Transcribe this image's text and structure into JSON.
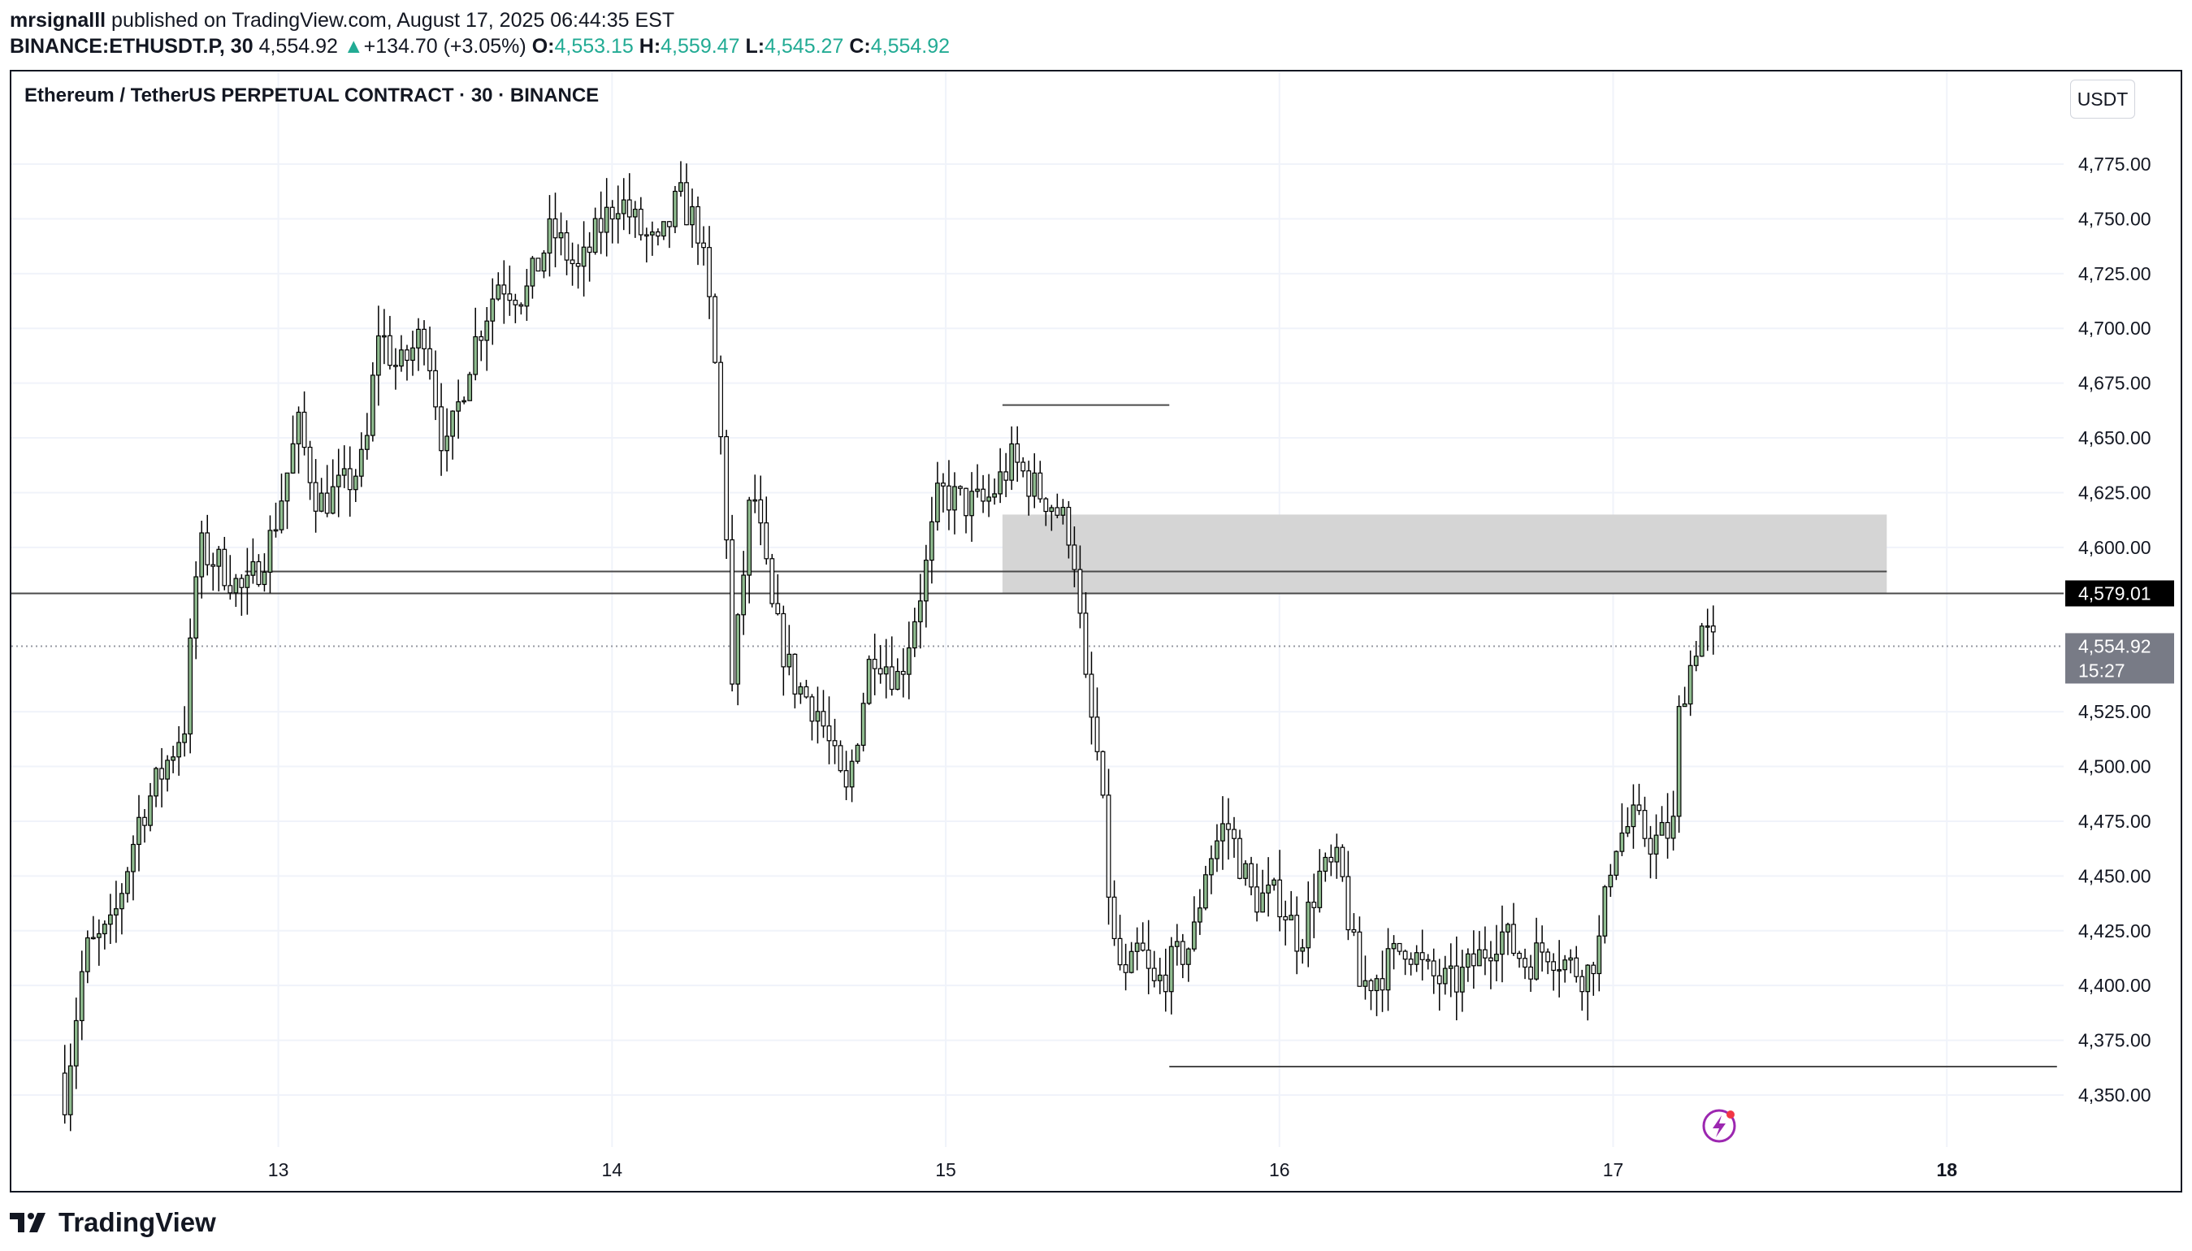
{
  "header": {
    "author": "mrsignalll",
    "published": "published on TradingView.com, August 17, 2025 06:44:35 EST",
    "symbol": "BINANCE:ETHUSDT.P, 30",
    "price": "4,554.92",
    "change": "+134.70 (+3.05%)",
    "o_label": "O:",
    "o_value": "4,553.15",
    "h_label": "H:",
    "h_value": "4,559.47",
    "l_label": "L:",
    "l_value": "4,545.27",
    "c_label": "C:",
    "c_value": "4,554.92"
  },
  "chart_title": "Ethereum / TetherUS PERPETUAL CONTRACT · 30 · BINANCE",
  "currency_button": "USDT",
  "brand": "TradingView",
  "colors": {
    "up_fill": "#8fbc8f",
    "candle_border": "#000000",
    "zone": "#d3d3d3",
    "accent": "#22ab94",
    "label_dark": "#000000",
    "label_gray": "#787b86"
  },
  "chart_data": {
    "type": "candlestick",
    "interval": "30",
    "y_axis": {
      "ticks": [
        4775,
        4750,
        4725,
        4700,
        4675,
        4650,
        4625,
        4600,
        4525,
        4500,
        4475,
        4450,
        4425,
        4400,
        4375,
        4350
      ],
      "tick_labels": [
        "4,775.00",
        "4,750.00",
        "4,725.00",
        "4,700.00",
        "4,675.00",
        "4,650.00",
        "4,625.00",
        "4,600.00",
        "4,525.00",
        "4,500.00",
        "4,475.00",
        "4,450.00",
        "4,425.00",
        "4,400.00",
        "4,375.00",
        "4,350.00"
      ],
      "ylim": [
        4330,
        4800
      ],
      "side": "right",
      "grid": true
    },
    "x_axis": {
      "ticks": [
        13,
        14,
        15,
        16,
        17,
        18
      ],
      "tick_labels": [
        "13",
        "14",
        "15",
        "16",
        "17",
        "18"
      ],
      "xlim": [
        12.2,
        18.35
      ],
      "grid": true
    },
    "price_labels": [
      {
        "value": 4579.01,
        "text": "4,579.01",
        "style": "dark"
      },
      {
        "value": 4554.92,
        "text": "4,554.92",
        "countdown": "15:27",
        "style": "gray"
      }
    ],
    "horizontal_lines": [
      {
        "y": 4579.01,
        "from_x": 12.2,
        "to_x": 18.35,
        "style": "solid"
      },
      {
        "y": 4554.92,
        "from_x": 12.2,
        "to_x": 18.35,
        "style": "dotted"
      },
      {
        "y": 4589,
        "from_x": 12.9,
        "to_x": 17.82,
        "style": "solid"
      },
      {
        "y": 4665,
        "from_x": 15.17,
        "to_x": 15.67,
        "style": "solid"
      },
      {
        "y": 4363,
        "from_x": 15.67,
        "to_x": 18.33,
        "style": "solid"
      }
    ],
    "zones": [
      {
        "x0": 15.17,
        "x1": 17.82,
        "y0": 4579,
        "y1": 4615
      }
    ],
    "candle_anchors": [
      [
        12.36,
        4350
      ],
      [
        12.42,
        4415
      ],
      [
        12.5,
        4425
      ],
      [
        12.58,
        4475
      ],
      [
        12.66,
        4500
      ],
      [
        12.72,
        4520
      ],
      [
        12.76,
        4600
      ],
      [
        12.84,
        4590
      ],
      [
        12.9,
        4578
      ],
      [
        12.98,
        4605
      ],
      [
        13.06,
        4655
      ],
      [
        13.12,
        4620
      ],
      [
        13.2,
        4628
      ],
      [
        13.26,
        4640
      ],
      [
        13.3,
        4700
      ],
      [
        13.36,
        4680
      ],
      [
        13.44,
        4700
      ],
      [
        13.5,
        4640
      ],
      [
        13.58,
        4690
      ],
      [
        13.66,
        4722
      ],
      [
        13.74,
        4715
      ],
      [
        13.82,
        4745
      ],
      [
        13.9,
        4725
      ],
      [
        13.96,
        4745
      ],
      [
        14.02,
        4760
      ],
      [
        14.08,
        4745
      ],
      [
        14.14,
        4735
      ],
      [
        14.2,
        4760
      ],
      [
        14.26,
        4745
      ],
      [
        14.3,
        4700
      ],
      [
        14.34,
        4620
      ],
      [
        14.36,
        4535
      ],
      [
        14.42,
        4630
      ],
      [
        14.48,
        4570
      ],
      [
        14.54,
        4540
      ],
      [
        14.62,
        4525
      ],
      [
        14.7,
        4485
      ],
      [
        14.78,
        4555
      ],
      [
        14.86,
        4540
      ],
      [
        14.94,
        4590
      ],
      [
        14.98,
        4625
      ],
      [
        15.06,
        4620
      ],
      [
        15.12,
        4620
      ],
      [
        15.2,
        4640
      ],
      [
        15.26,
        4628
      ],
      [
        15.32,
        4620
      ],
      [
        15.38,
        4605
      ],
      [
        15.42,
        4535
      ],
      [
        15.46,
        4500
      ],
      [
        15.5,
        4420
      ],
      [
        15.54,
        4400
      ],
      [
        15.58,
        4418
      ],
      [
        15.62,
        4398
      ],
      [
        15.68,
        4410
      ],
      [
        15.74,
        4420
      ],
      [
        15.78,
        4455
      ],
      [
        15.84,
        4475
      ],
      [
        15.92,
        4440
      ],
      [
        16.0,
        4440
      ],
      [
        16.06,
        4420
      ],
      [
        16.12,
        4450
      ],
      [
        16.18,
        4455
      ],
      [
        16.24,
        4400
      ],
      [
        16.3,
        4405
      ],
      [
        16.38,
        4420
      ],
      [
        16.44,
        4405
      ],
      [
        16.52,
        4400
      ],
      [
        16.6,
        4413
      ],
      [
        16.66,
        4425
      ],
      [
        16.74,
        4410
      ],
      [
        16.8,
        4418
      ],
      [
        16.86,
        4410
      ],
      [
        16.92,
        4405
      ],
      [
        16.96,
        4420
      ],
      [
        17.0,
        4465
      ],
      [
        17.06,
        4475
      ],
      [
        17.12,
        4465
      ],
      [
        17.18,
        4472
      ],
      [
        17.2,
        4530
      ],
      [
        17.24,
        4550
      ],
      [
        17.26,
        4565
      ],
      [
        17.3,
        4555
      ]
    ],
    "candle_count": 290
  }
}
